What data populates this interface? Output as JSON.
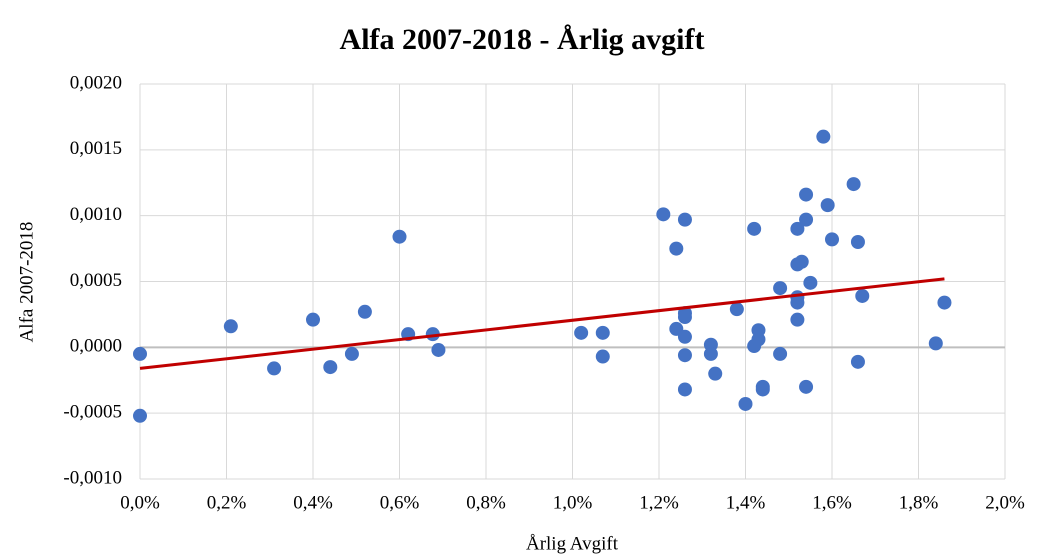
{
  "chart_data": {
    "type": "scatter",
    "title": "Alfa 2007-2018 - Årlig avgift",
    "x_label": "Årlig Avgift",
    "y_label": "Alfa 2007-2018",
    "color": "#4472c4",
    "grid": true,
    "x": [
      0,
      0,
      0.21,
      0.31,
      0.4,
      0.44,
      0.49,
      0.52,
      0.6,
      0.62,
      0.677,
      0.69,
      1.02,
      1.07,
      1.07,
      1.21,
      1.24,
      1.24,
      1.26,
      1.26,
      1.26,
      1.26,
      1.26,
      1.26,
      1.32,
      1.32,
      1.33,
      1.38,
      1.4,
      1.42,
      1.42,
      1.43,
      1.43,
      1.44,
      1.44,
      1.48,
      1.48,
      1.52,
      1.52,
      1.53,
      1.52,
      1.52,
      1.52,
      1.54,
      1.54,
      1.54,
      1.55,
      1.58,
      1.59,
      1.6,
      1.65,
      1.66,
      1.66,
      1.67,
      1.84,
      1.86
    ],
    "values": [
      -5e-05,
      -0.00052,
      0.00016,
      -0.00016,
      0.00021,
      -0.00015,
      -5e-05,
      0.00027,
      0.00084,
      0.0001,
      0.0001,
      -2e-05,
      0.00011,
      0.00011,
      -7e-05,
      0.00101,
      0.00075,
      0.00014,
      0.00097,
      0.00026,
      0.00023,
      8e-05,
      -6e-05,
      -0.00032,
      2e-05,
      -5e-05,
      -0.0002,
      0.00029,
      -0.00043,
      0.0009,
      1e-05,
      0.00013,
      6e-05,
      -0.0003,
      -0.00032,
      0.00045,
      -5e-05,
      0.0009,
      0.00063,
      0.00065,
      0.00038,
      0.00034,
      0.00021,
      0.00116,
      0.00097,
      -0.0003,
      0.00049,
      0.0016,
      0.00108,
      0.00082,
      0.00124,
      0.0008,
      -0.00011,
      0.00039,
      3e-05,
      0.00034
    ],
    "trendline": {
      "color": "#c00000",
      "x": [
        0,
        1.86
      ],
      "values": [
        -0.00016,
        0.00052
      ]
    },
    "xlim": [
      0,
      2.0
    ],
    "ylim": [
      -0.001,
      0.002
    ],
    "xticks": [
      {
        "value": 0,
        "label": "0,0%"
      },
      {
        "value": 0.2,
        "label": "0,2%"
      },
      {
        "value": 0.4,
        "label": "0,4%"
      },
      {
        "value": 0.6,
        "label": "0,6%"
      },
      {
        "value": 0.8,
        "label": "0,8%"
      },
      {
        "value": 1.0,
        "label": "1,0%"
      },
      {
        "value": 1.2,
        "label": "1,2%"
      },
      {
        "value": 1.4,
        "label": "1,4%"
      },
      {
        "value": 1.6,
        "label": "1,6%"
      },
      {
        "value": 1.8,
        "label": "1,8%"
      },
      {
        "value": 2.0,
        "label": "2,0%"
      }
    ],
    "yticks": [
      {
        "value": -0.001,
        "label": "-0,0010"
      },
      {
        "value": -0.0005,
        "label": "-0,0005"
      },
      {
        "value": 0,
        "label": "0,0000"
      },
      {
        "value": 0.0005,
        "label": "0,0005"
      },
      {
        "value": 0.001,
        "label": "0,0010"
      },
      {
        "value": 0.0015,
        "label": "0,0015"
      },
      {
        "value": 0.002,
        "label": "0,0020"
      }
    ]
  }
}
